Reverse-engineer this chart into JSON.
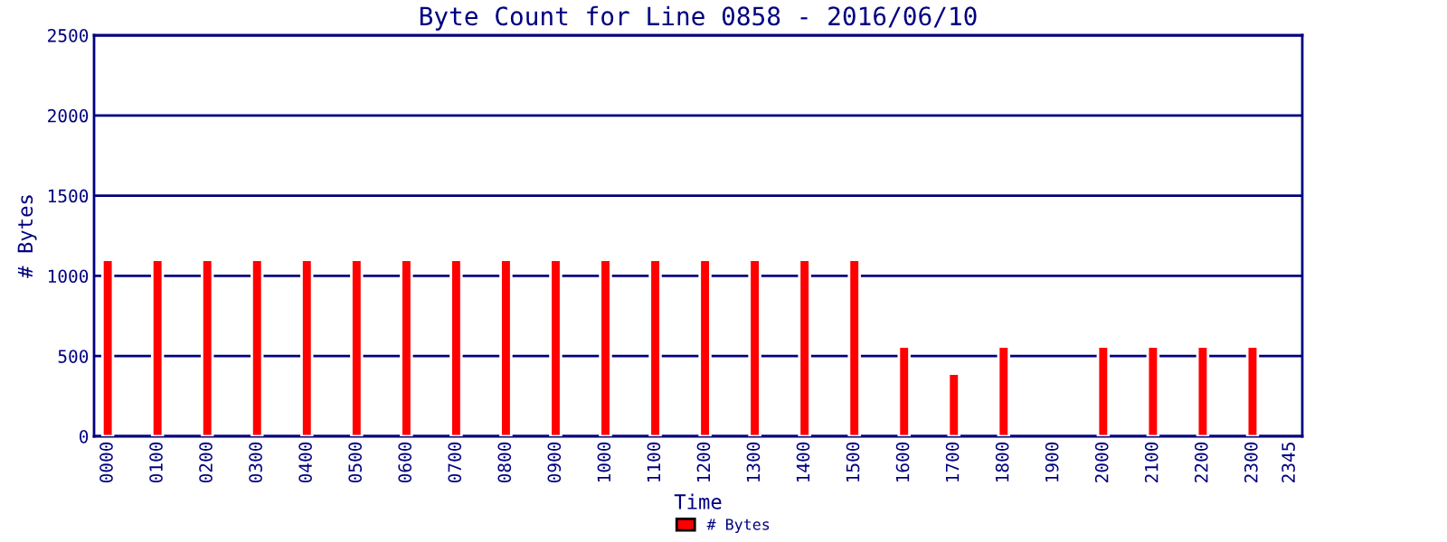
{
  "chart_data": {
    "type": "bar",
    "title": "Byte Count for Line 0858 - 2016/06/10",
    "xlabel": "Time",
    "ylabel": "# Bytes",
    "categories": [
      "0000",
      null,
      null,
      null,
      "0100",
      null,
      null,
      null,
      "0200",
      null,
      null,
      null,
      "0300",
      null,
      null,
      null,
      "0400",
      null,
      null,
      null,
      "0500",
      null,
      null,
      null,
      "0600",
      null,
      null,
      null,
      "0700",
      null,
      null,
      null,
      "0800",
      null,
      null,
      null,
      "0900",
      null,
      null,
      null,
      "1000",
      null,
      null,
      null,
      "1100",
      null,
      null,
      null,
      "1200",
      null,
      null,
      null,
      "1300",
      null,
      null,
      null,
      "1400",
      null,
      null,
      null,
      "1500",
      null,
      null,
      null,
      "1600",
      null,
      null,
      null,
      "1700",
      null,
      null,
      null,
      "1800",
      null,
      null,
      null,
      "1900",
      null,
      null,
      null,
      "2000",
      null,
      null,
      null,
      "2100",
      null,
      null,
      null,
      "2200",
      null,
      null,
      null,
      "2300",
      null,
      null,
      "2345"
    ],
    "series": [
      {
        "name": "# Bytes",
        "color": "#ff0000",
        "values": [
          1100,
          null,
          null,
          null,
          1100,
          null,
          null,
          null,
          1100,
          null,
          null,
          null,
          1100,
          null,
          null,
          null,
          1100,
          null,
          null,
          null,
          1100,
          null,
          null,
          null,
          1100,
          null,
          null,
          null,
          1100,
          null,
          null,
          null,
          1100,
          null,
          null,
          null,
          1100,
          null,
          null,
          null,
          1100,
          null,
          null,
          null,
          1100,
          null,
          null,
          null,
          1100,
          null,
          null,
          null,
          1100,
          null,
          null,
          null,
          1100,
          null,
          null,
          null,
          1100,
          null,
          null,
          null,
          560,
          null,
          null,
          null,
          390,
          null,
          null,
          null,
          560,
          null,
          null,
          null,
          null,
          null,
          null,
          null,
          560,
          null,
          null,
          null,
          560,
          null,
          null,
          null,
          560,
          null,
          null,
          null,
          560,
          null,
          null,
          null
        ]
      }
    ],
    "ylim": [
      0,
      2500
    ],
    "yticks": [
      0,
      500,
      1000,
      1500,
      2000,
      2500
    ],
    "grid": "y",
    "legend": "bottom"
  }
}
